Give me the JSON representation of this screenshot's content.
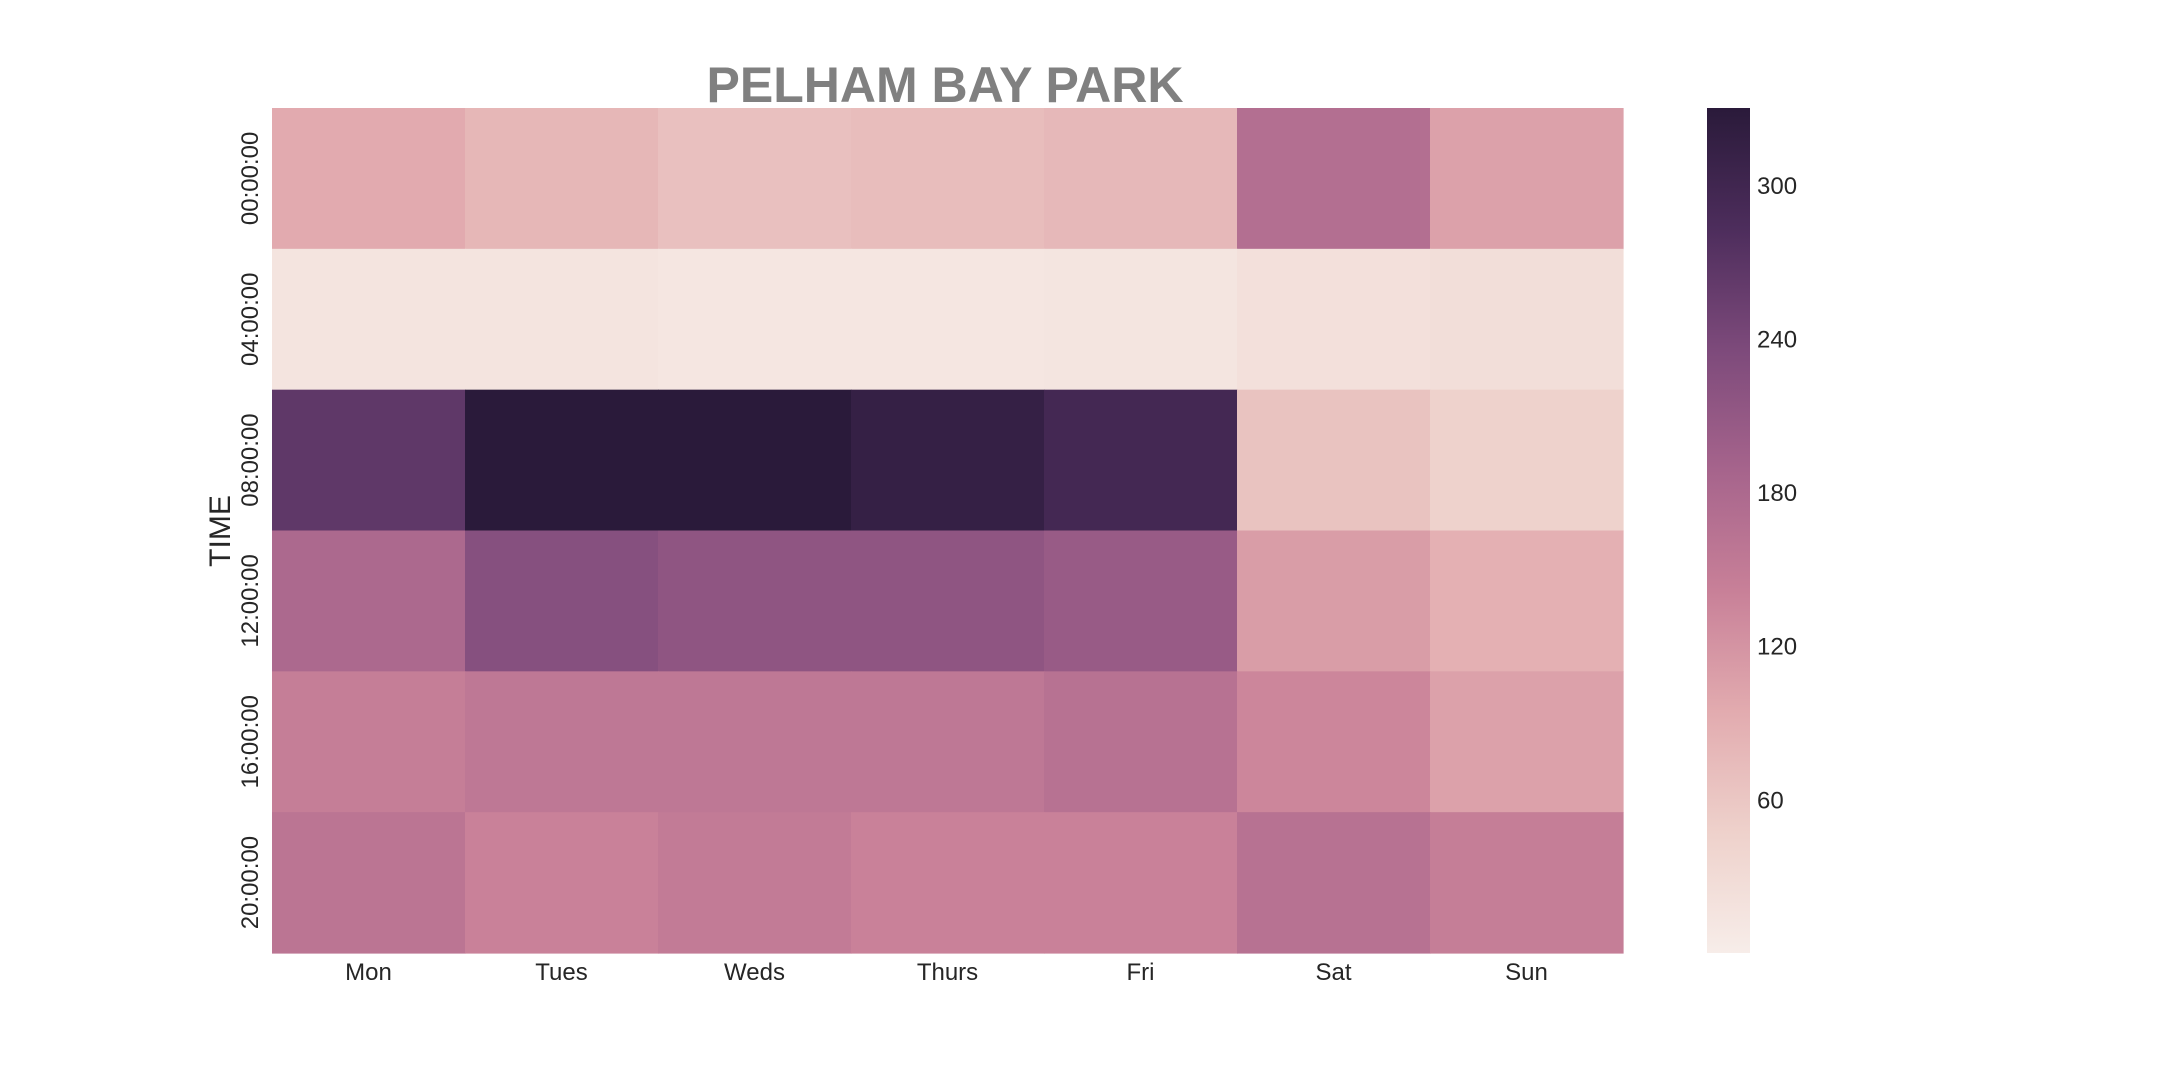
{
  "chart_data": {
    "type": "heatmap",
    "title": "PELHAM BAY PARK",
    "ylabel": "TIME",
    "xlabel": "",
    "x_categories": [
      "Mon",
      "Tues",
      "Weds",
      "Thurs",
      "Fri",
      "Sat",
      "Sun"
    ],
    "y_categories": [
      "00:00:00",
      "04:00:00",
      "08:00:00",
      "12:00:00",
      "16:00:00",
      "20:00:00"
    ],
    "values": [
      [
        95,
        80,
        68,
        72,
        78,
        170,
        105
      ],
      [
        15,
        15,
        12,
        12,
        14,
        22,
        25
      ],
      [
        265,
        330,
        330,
        315,
        295,
        65,
        45
      ],
      [
        180,
        225,
        215,
        215,
        205,
        110,
        88
      ],
      [
        145,
        155,
        155,
        155,
        165,
        135,
        105
      ],
      [
        160,
        140,
        150,
        140,
        140,
        165,
        145
      ]
    ],
    "colorbar": {
      "min": 0,
      "max": 330,
      "ticks": [
        60,
        120,
        180,
        240,
        300
      ],
      "colormap": [
        "#f7ede9",
        "#eed1cb",
        "#e2abaf",
        "#c88098",
        "#a6648c",
        "#7d4a7b",
        "#4d2d5c",
        "#2a1a3a"
      ]
    }
  }
}
